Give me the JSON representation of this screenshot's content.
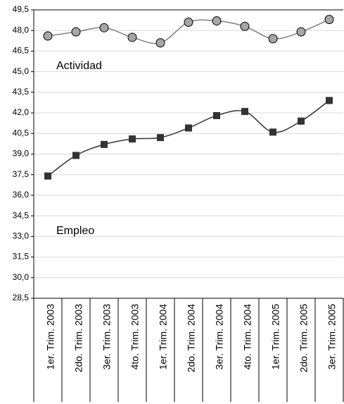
{
  "chart_data": {
    "type": "line",
    "categories": [
      "1er. Trim. 2003",
      "2do. Trim. 2003",
      "3er. Trim. 2003",
      "4to. Trim. 2003",
      "1er. Trim. 2004",
      "2do. Trim. 2004",
      "3er. Trim. 2004",
      "4to. Trim. 2004",
      "1er. Trim. 2005",
      "2do. Trim. 2005",
      "3er. Trim. 2005"
    ],
    "series": [
      {
        "name": "Actividad",
        "color": "#808080",
        "marker_color": "#a6a6a6",
        "marker": "circle",
        "values": [
          47.6,
          47.9,
          48.2,
          47.5,
          47.1,
          48.6,
          48.7,
          48.3,
          47.4,
          47.9,
          48.8
        ]
      },
      {
        "name": "Empleo",
        "color": "#333333",
        "marker_color": "#333333",
        "marker": "square",
        "values": [
          37.4,
          38.9,
          39.7,
          40.1,
          40.2,
          40.9,
          41.8,
          42.1,
          40.6,
          41.4,
          42.9
        ]
      }
    ],
    "ylim": [
      28.5,
      49.5
    ],
    "yticks": [
      {
        "value": 28.5,
        "label": "28,5"
      },
      {
        "value": 30,
        "label": "30,0"
      },
      {
        "value": 31.5,
        "label": "31,5"
      },
      {
        "value": 33,
        "label": "33,0"
      },
      {
        "value": 34.5,
        "label": "34,5"
      },
      {
        "value": 36,
        "label": "36,0"
      },
      {
        "value": 37.5,
        "label": "37,5"
      },
      {
        "value": 39,
        "label": "39,0"
      },
      {
        "value": 40.5,
        "label": "40,5"
      },
      {
        "value": 42,
        "label": "42,0"
      },
      {
        "value": 43.5,
        "label": "43,5"
      },
      {
        "value": 45,
        "label": "45,0"
      },
      {
        "value": 46.5,
        "label": "46,5"
      },
      {
        "value": 48,
        "label": "48,0"
      },
      {
        "value": 49.5,
        "label": "49,5"
      }
    ],
    "grid": true
  }
}
